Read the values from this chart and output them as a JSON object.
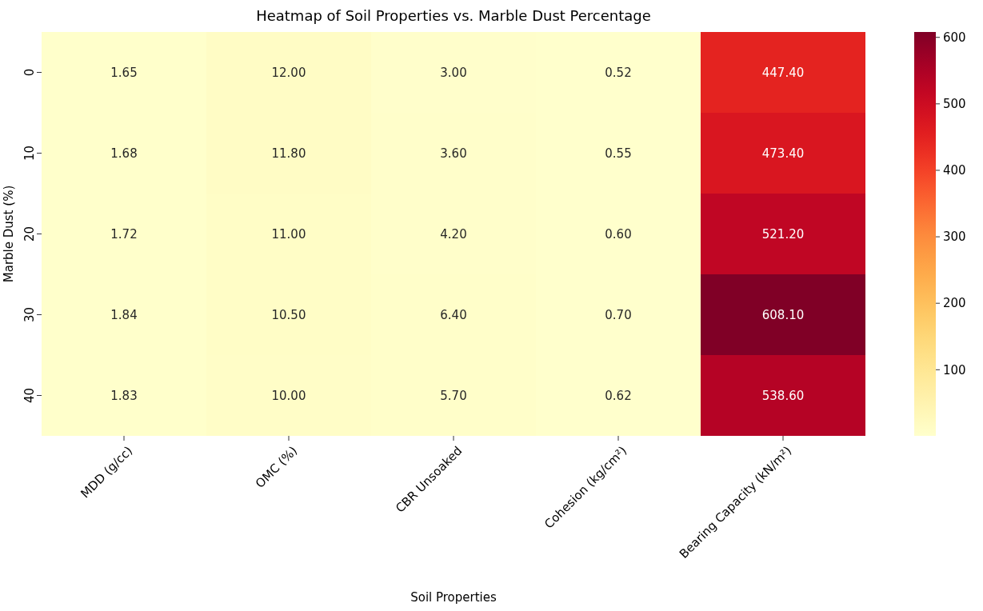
{
  "chart_data": {
    "type": "heatmap",
    "title": "Heatmap of Soil Properties vs. Marble Dust Percentage",
    "xlabel": "Soil Properties",
    "ylabel": "Marble Dust (%)",
    "categories": [
      "MDD (g/cc)",
      "OMC (%)",
      "CBR Unsoaked",
      "Cohesion (kg/cm²)",
      "Bearing Capacity (kN/m²)"
    ],
    "y_categories": [
      "0",
      "10",
      "20",
      "30",
      "40"
    ],
    "cells": [
      [
        1.65,
        12.0,
        3.0,
        0.52,
        447.4
      ],
      [
        1.68,
        11.8,
        3.6,
        0.55,
        473.4
      ],
      [
        1.72,
        11.0,
        4.2,
        0.6,
        521.2
      ],
      [
        1.84,
        10.5,
        6.4,
        0.7,
        608.1
      ],
      [
        1.83,
        10.0,
        5.7,
        0.62,
        538.6
      ]
    ],
    "cell_labels": [
      [
        "1.65",
        "12.00",
        "3.00",
        "0.52",
        "447.40"
      ],
      [
        "1.68",
        "11.80",
        "3.60",
        "0.55",
        "473.40"
      ],
      [
        "1.72",
        "11.00",
        "4.20",
        "0.60",
        "521.20"
      ],
      [
        "1.84",
        "10.50",
        "6.40",
        "0.70",
        "608.10"
      ],
      [
        "1.83",
        "10.00",
        "5.70",
        "0.62",
        "538.60"
      ]
    ],
    "clim": [
      0.52,
      608.1
    ],
    "cticks": [
      100,
      200,
      300,
      400,
      500,
      600
    ]
  }
}
